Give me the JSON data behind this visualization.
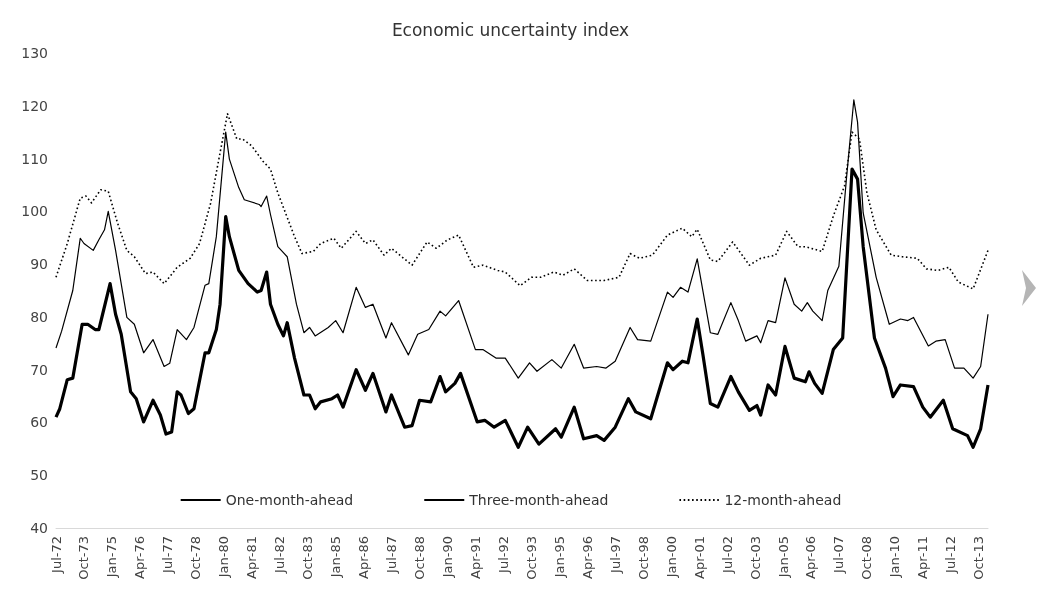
{
  "chart_data": {
    "type": "line",
    "title": "Economic uncertainty index",
    "xticks": [
      {
        "value": "1972-07",
        "label": "Jul-72"
      },
      {
        "value": "1973-10",
        "label": "Oct-73"
      },
      {
        "value": "1975-01",
        "label": "Jan-75"
      },
      {
        "value": "1976-04",
        "label": "Apr-76"
      },
      {
        "value": "1977-07",
        "label": "Jul-77"
      },
      {
        "value": "1978-10",
        "label": "Oct-78"
      },
      {
        "value": "1980-01",
        "label": "Jan-80"
      },
      {
        "value": "1981-04",
        "label": "Apr-81"
      },
      {
        "value": "1982-07",
        "label": "Jul-82"
      },
      {
        "value": "1983-10",
        "label": "Oct-83"
      },
      {
        "value": "1985-01",
        "label": "Jan-85"
      },
      {
        "value": "1986-04",
        "label": "Apr-86"
      },
      {
        "value": "1987-07",
        "label": "Jul-87"
      },
      {
        "value": "1988-10",
        "label": "Oct-88"
      },
      {
        "value": "1990-01",
        "label": "Jan-90"
      },
      {
        "value": "1991-04",
        "label": "Apr-91"
      },
      {
        "value": "1992-07",
        "label": "Jul-92"
      },
      {
        "value": "1993-10",
        "label": "Oct-93"
      },
      {
        "value": "1995-01",
        "label": "Jan-95"
      },
      {
        "value": "1996-04",
        "label": "Apr-96"
      },
      {
        "value": "1997-07",
        "label": "Jul-97"
      },
      {
        "value": "1998-10",
        "label": "Oct-98"
      },
      {
        "value": "2000-01",
        "label": "Jan-00"
      },
      {
        "value": "2001-04",
        "label": "Apr-01"
      },
      {
        "value": "2002-07",
        "label": "Jul-02"
      },
      {
        "value": "2003-10",
        "label": "Oct-03"
      },
      {
        "value": "2005-01",
        "label": "Jan-05"
      },
      {
        "value": "2006-04",
        "label": "Apr-06"
      },
      {
        "value": "2007-07",
        "label": "Jul-07"
      },
      {
        "value": "2008-10",
        "label": "Oct-08"
      },
      {
        "value": "2010-01",
        "label": "Jan-10"
      },
      {
        "value": "2011-04",
        "label": "Apr-11"
      },
      {
        "value": "2012-07",
        "label": "Jul-12"
      },
      {
        "value": "2013-10",
        "label": "Oct-13"
      }
    ],
    "xlim": [
      "1972-07",
      "2014-03"
    ],
    "ylim": [
      40,
      130
    ],
    "yticks": [
      40,
      50,
      60,
      70,
      80,
      90,
      100,
      110,
      120,
      130
    ],
    "grid": false,
    "legend": "bottom",
    "marker": "none",
    "series": [
      {
        "name": "One-month-ahead",
        "color": "#000000",
        "line_style": "solid",
        "x": [
          "1972-07",
          "1972-09",
          "1973-01",
          "1973-04",
          "1973-09",
          "1973-12",
          "1974-04",
          "1974-06",
          "1974-08",
          "1974-12",
          "1975-03",
          "1975-06",
          "1975-11",
          "1976-02",
          "1976-06",
          "1976-11",
          "1977-03",
          "1977-06",
          "1977-09",
          "1977-12",
          "1978-02",
          "1978-06",
          "1978-09",
          "1979-03",
          "1979-05",
          "1979-09",
          "1979-11",
          "1980-02",
          "1980-04",
          "1980-09",
          "1981-02",
          "1981-07",
          "1981-09",
          "1981-12",
          "1982-02",
          "1982-06",
          "1982-09",
          "1982-11",
          "1983-03",
          "1983-08",
          "1983-11",
          "1984-02",
          "1984-05",
          "1984-11",
          "1985-02",
          "1985-05",
          "1985-12",
          "1986-05",
          "1986-09",
          "1987-04",
          "1987-07",
          "1988-02",
          "1988-06",
          "1988-10",
          "1989-04",
          "1989-09",
          "1989-12",
          "1990-05",
          "1990-08",
          "1991-05",
          "1991-09",
          "1992-02",
          "1992-08",
          "1993-03",
          "1993-08",
          "1994-02",
          "1994-11",
          "1995-02",
          "1995-09",
          "1996-02",
          "1996-09",
          "1997-01",
          "1997-07",
          "1998-02",
          "1998-06",
          "1999-02",
          "1999-11",
          "2000-02",
          "2000-07",
          "2000-10",
          "2001-03",
          "2001-06",
          "2001-10",
          "2002-02",
          "2002-09",
          "2003-01",
          "2003-07",
          "2003-11",
          "2004-01",
          "2004-05",
          "2004-09",
          "2005-02",
          "2005-07",
          "2006-01",
          "2006-03",
          "2006-06",
          "2006-10",
          "2007-04",
          "2007-09",
          "2008-02",
          "2008-05",
          "2008-08",
          "2009-02",
          "2009-08",
          "2009-12",
          "2010-04",
          "2010-11",
          "2011-04",
          "2011-08",
          "2012-03",
          "2012-08",
          "2013-04",
          "2013-07",
          "2013-11",
          "2014-03"
        ],
        "values": [
          61.0,
          62.6,
          68.1,
          68.4,
          78.6,
          78.6,
          77.6,
          77.6,
          80.5,
          86.3,
          80.5,
          76.7,
          65.8,
          64.5,
          60.1,
          64.2,
          61.4,
          57.8,
          58.2,
          65.8,
          65.2,
          61.7,
          62.6,
          73.2,
          73.2,
          77.6,
          82.4,
          99.0,
          95.2,
          88.8,
          86.3,
          84.7,
          85.0,
          88.5,
          82.4,
          78.6,
          76.4,
          78.9,
          72.2,
          65.2,
          65.2,
          62.6,
          63.9,
          64.5,
          65.2,
          62.9,
          70.0,
          66.1,
          69.3,
          62.0,
          65.2,
          59.1,
          59.4,
          64.2,
          63.9,
          68.7,
          65.8,
          67.4,
          69.3,
          60.1,
          60.4,
          59.1,
          60.4,
          55.3,
          59.1,
          55.9,
          58.8,
          57.2,
          62.9,
          56.9,
          57.5,
          56.6,
          59.1,
          64.5,
          62.0,
          60.7,
          71.3,
          70.0,
          71.6,
          71.3,
          79.6,
          72.9,
          63.6,
          62.9,
          68.7,
          65.8,
          62.3,
          63.2,
          61.4,
          67.1,
          65.2,
          74.4,
          68.4,
          67.7,
          69.6,
          67.4,
          65.5,
          73.8,
          76.0,
          108.0,
          106.1,
          93.3,
          76.0,
          70.3,
          64.9,
          67.1,
          66.8,
          62.9,
          61.0,
          64.2,
          58.8,
          57.5,
          55.3,
          58.8,
          67.1
        ]
      },
      {
        "name": "Three-month-ahead",
        "color": "#000000",
        "line_style": "solid",
        "x": [
          "1972-07",
          "1972-10",
          "1973-04",
          "1973-08",
          "1973-10",
          "1974-03",
          "1974-06",
          "1974-09",
          "1974-11",
          "1975-03",
          "1975-09",
          "1976-01",
          "1976-06",
          "1976-11",
          "1977-05",
          "1977-08",
          "1977-12",
          "1978-05",
          "1978-09",
          "1979-03",
          "1979-05",
          "1979-09",
          "1980-02",
          "1980-04",
          "1980-09",
          "1980-12",
          "1981-08",
          "1981-09",
          "1981-12",
          "1982-02",
          "1982-06",
          "1982-11",
          "1983-04",
          "1983-08",
          "1983-11",
          "1984-02",
          "1984-09",
          "1985-01",
          "1985-05",
          "1985-12",
          "1986-05",
          "1986-09",
          "1987-04",
          "1987-07",
          "1988-04",
          "1988-09",
          "1989-03",
          "1989-09",
          "1989-12",
          "1990-07",
          "1991-04",
          "1991-08",
          "1992-03",
          "1992-08",
          "1993-03",
          "1993-09",
          "1994-01",
          "1994-09",
          "1995-02",
          "1995-09",
          "1996-02",
          "1996-09",
          "1997-02",
          "1997-07",
          "1998-03",
          "1998-07",
          "1999-02",
          "1999-11",
          "2000-02",
          "2000-06",
          "2000-10",
          "2001-03",
          "2001-10",
          "2002-02",
          "2002-09",
          "2003-01",
          "2003-05",
          "2003-11",
          "2004-01",
          "2004-05",
          "2004-09",
          "2005-02",
          "2005-07",
          "2005-11",
          "2006-02",
          "2006-05",
          "2006-10",
          "2007-01",
          "2007-07",
          "2007-11",
          "2008-03",
          "2008-05",
          "2008-08",
          "2009-03",
          "2009-10",
          "2010-04",
          "2010-08",
          "2010-11",
          "2011-07",
          "2011-11",
          "2012-04",
          "2012-09",
          "2013-02",
          "2013-07",
          "2013-11",
          "2014-03"
        ],
        "values": [
          74.1,
          77.3,
          85.0,
          94.9,
          93.9,
          92.6,
          94.6,
          96.5,
          100.0,
          92.6,
          79.9,
          78.6,
          73.2,
          75.7,
          70.6,
          71.2,
          77.6,
          75.7,
          78.0,
          86.0,
          86.3,
          95.2,
          115.0,
          109.9,
          104.5,
          102.2,
          101.3,
          100.9,
          102.9,
          99.4,
          93.3,
          91.4,
          82.4,
          77.0,
          78.0,
          76.4,
          78.0,
          79.3,
          77.0,
          85.6,
          81.8,
          82.4,
          76.0,
          78.9,
          72.8,
          76.7,
          77.6,
          81.1,
          80.2,
          83.1,
          73.8,
          73.8,
          72.2,
          72.2,
          68.4,
          71.3,
          69.7,
          71.9,
          70.3,
          74.8,
          70.3,
          70.6,
          70.3,
          71.6,
          78.0,
          75.7,
          75.4,
          84.7,
          83.7,
          85.6,
          84.7,
          91.0,
          77.0,
          76.7,
          82.7,
          79.3,
          75.4,
          76.4,
          75.1,
          79.3,
          78.9,
          87.4,
          82.4,
          81.1,
          82.7,
          81.1,
          79.3,
          85.0,
          89.6,
          106.1,
          121.1,
          116.9,
          99.7,
          87.5,
          78.6,
          79.6,
          79.3,
          79.9,
          74.5,
          75.4,
          75.7,
          70.3,
          70.3,
          68.4,
          70.6,
          80.5
        ]
      },
      {
        "name": "12-month-ahead",
        "color": "#000000",
        "line_style": "dotted",
        "x": [
          "1972-07",
          "1973-01",
          "1973-08",
          "1973-11",
          "1974-02",
          "1974-07",
          "1974-11",
          "1975-04",
          "1975-09",
          "1976-01",
          "1976-07",
          "1976-11",
          "1977-05",
          "1977-12",
          "1978-07",
          "1978-12",
          "1979-06",
          "1979-10",
          "1980-03",
          "1980-08",
          "1980-11",
          "1981-04",
          "1981-10",
          "1982-02",
          "1982-06",
          "1983-03",
          "1983-07",
          "1984-01",
          "1984-05",
          "1984-12",
          "1985-04",
          "1985-12",
          "1986-05",
          "1986-09",
          "1987-03",
          "1987-07",
          "1988-06",
          "1989-02",
          "1989-07",
          "1990-01",
          "1990-07",
          "1991-03",
          "1991-08",
          "1992-04",
          "1992-08",
          "1993-04",
          "1993-10",
          "1994-03",
          "1994-10",
          "1995-03",
          "1995-09",
          "1996-04",
          "1997-01",
          "1997-09",
          "1998-03",
          "1998-08",
          "1999-03",
          "1999-11",
          "2000-05",
          "2000-07",
          "2000-12",
          "2001-03",
          "2001-10",
          "2002-02",
          "2002-10",
          "2003-07",
          "2004-01",
          "2004-09",
          "2005-03",
          "2005-09",
          "2006-01",
          "2006-10",
          "2007-04",
          "2007-10",
          "2008-02",
          "2008-06",
          "2008-10",
          "2009-03",
          "2009-11",
          "2010-05",
          "2011-01",
          "2011-06",
          "2011-12",
          "2012-06",
          "2012-11",
          "2013-07",
          "2014-03"
        ],
        "values": [
          87.5,
          93.9,
          102.5,
          102.9,
          101.6,
          104.1,
          103.8,
          97.8,
          92.6,
          91.4,
          88.2,
          88.5,
          86.3,
          89.4,
          91.1,
          93.9,
          101.6,
          109.2,
          118.5,
          113.7,
          113.7,
          112.4,
          109.5,
          108.0,
          103.5,
          95.2,
          92.0,
          92.4,
          93.9,
          94.9,
          93.0,
          96.2,
          93.9,
          94.6,
          91.7,
          93.0,
          89.8,
          94.2,
          93.0,
          94.6,
          95.5,
          89.4,
          89.8,
          88.8,
          88.5,
          85.9,
          87.5,
          87.5,
          88.5,
          87.9,
          89.1,
          86.9,
          86.9,
          87.5,
          92.0,
          91.1,
          91.7,
          95.5,
          96.5,
          96.8,
          95.2,
          96.6,
          90.8,
          90.5,
          94.2,
          89.8,
          91.1,
          91.7,
          96.2,
          93.3,
          93.3,
          92.4,
          99.1,
          104.8,
          115.0,
          113.7,
          103.5,
          96.5,
          91.7,
          91.4,
          91.1,
          89.1,
          88.8,
          89.4,
          86.6,
          85.3,
          92.6
        ]
      }
    ]
  }
}
